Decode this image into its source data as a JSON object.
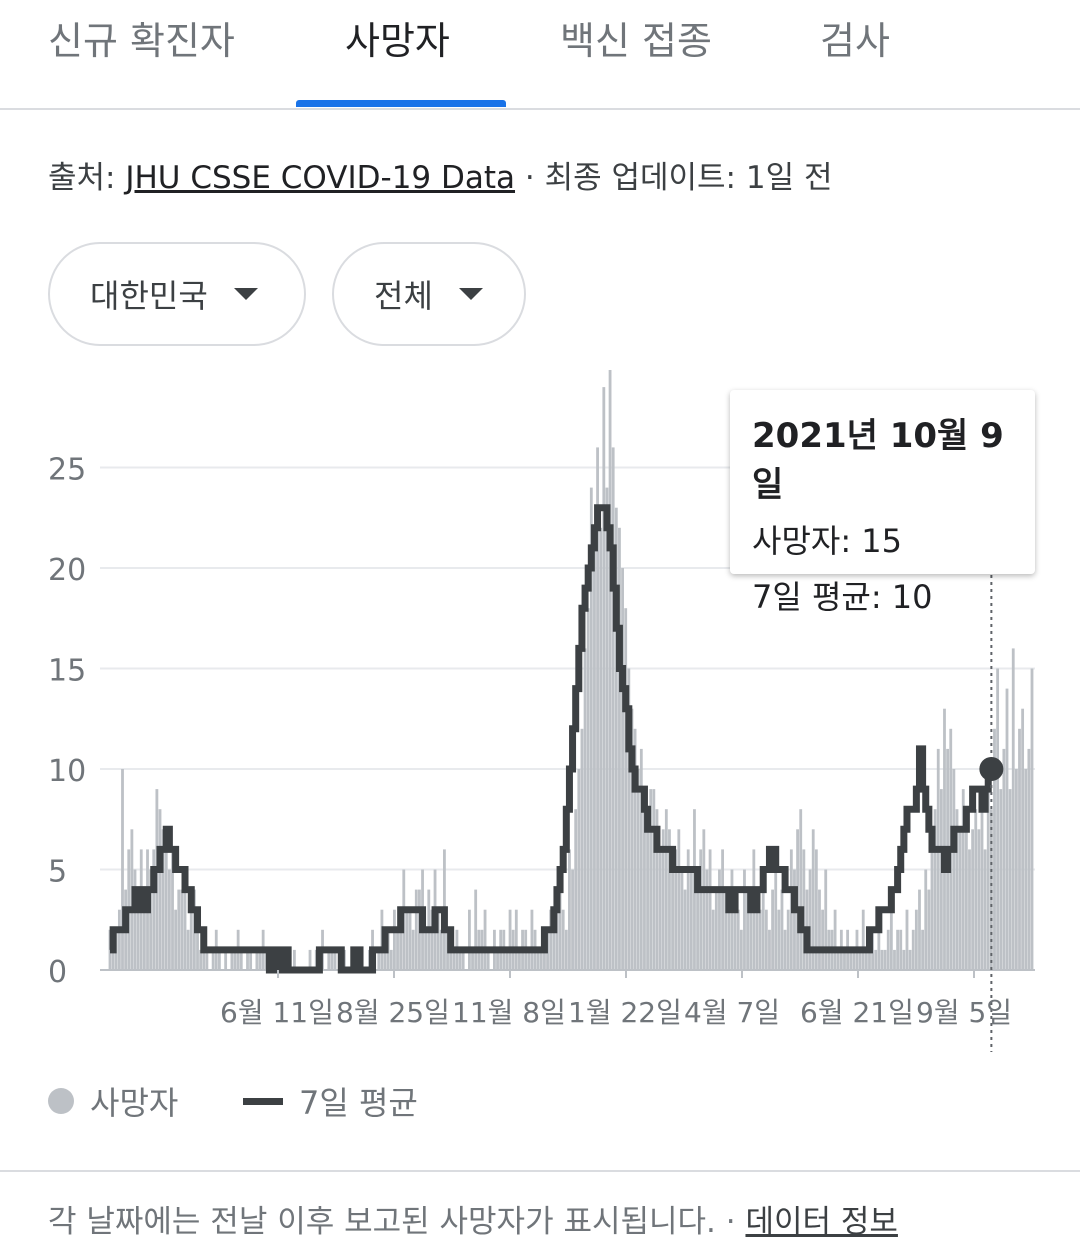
{
  "tabs": [
    {
      "label": "신규 확진자",
      "active": false
    },
    {
      "label": "사망자",
      "active": true
    },
    {
      "label": "백신 접종",
      "active": false
    },
    {
      "label": "검사",
      "active": false
    }
  ],
  "source": {
    "prefix": "출처: ",
    "link": "JHU CSSE COVID-19 Data",
    "suffix": " · 최종 업데이트: 1일 전"
  },
  "filters": {
    "region": "대한민국",
    "scope": "전체"
  },
  "tooltip": {
    "date": "2021년 10월 9일",
    "deaths": "사망자: 15",
    "avg": "7일 평균: 10"
  },
  "legend": {
    "series1": "사망자",
    "series2": "7일 평균"
  },
  "footer": {
    "note": "각 날짜에는 전날 이후 보고된 사망자가 표시됩니다.",
    "sep": " · ",
    "link": "데이터 정보"
  },
  "colors": {
    "accent": "#1a73e8",
    "bar": "#bdc1c6",
    "line": "#3c4043"
  },
  "chart_data": {
    "type": "bar",
    "y_ticks": [
      "0",
      "5",
      "10",
      "15",
      "20",
      "25"
    ],
    "x_ticks": [
      "6월 11일",
      "8월 25일",
      "11월 8일",
      "1월 22일",
      "4월 7일",
      "6월 21일",
      "9월 5일"
    ],
    "ylim": [
      0,
      28
    ],
    "series": [
      {
        "name": "사망자",
        "kind": "bar",
        "values": [
          2,
          1,
          2,
          3,
          10,
          4,
          6,
          7,
          5,
          3,
          6,
          4,
          6,
          5,
          6,
          9,
          8,
          7,
          7,
          5,
          6,
          3,
          4,
          4,
          5,
          2,
          3,
          4,
          2,
          1,
          1,
          1,
          0,
          1,
          2,
          1,
          0,
          1,
          0,
          1,
          1,
          2,
          1,
          0,
          1,
          1,
          0,
          1,
          1,
          2,
          1,
          0,
          0,
          0,
          0,
          0,
          1,
          0,
          0,
          1,
          0,
          0,
          0,
          0,
          1,
          0,
          1,
          1,
          2,
          0,
          1,
          1,
          1,
          0,
          0,
          1,
          0,
          0,
          1,
          0,
          0,
          0,
          0,
          1,
          2,
          0,
          1,
          3,
          1,
          2,
          1,
          3,
          2,
          2,
          5,
          3,
          3,
          2,
          4,
          4,
          5,
          2,
          4,
          3,
          5,
          3,
          2,
          6,
          2,
          1,
          1,
          2,
          1,
          1,
          0,
          3,
          1,
          4,
          2,
          2,
          3,
          1,
          0,
          2,
          1,
          2,
          2,
          1,
          3,
          2,
          3,
          1,
          2,
          2,
          1,
          3,
          2,
          1,
          1,
          2,
          2,
          3,
          2,
          3,
          4,
          3,
          2,
          6,
          5,
          8,
          10,
          12,
          16,
          18,
          24,
          22,
          26,
          22,
          29,
          24,
          30,
          26,
          23,
          22,
          20,
          18,
          15,
          13,
          12,
          10,
          11,
          9,
          8,
          9,
          9,
          8,
          6,
          7,
          8,
          7,
          5,
          6,
          7,
          5,
          4,
          6,
          5,
          8,
          4,
          6,
          7,
          5,
          6,
          3,
          4,
          5,
          6,
          4,
          3,
          5,
          4,
          3,
          2,
          5,
          4,
          3,
          6,
          4,
          3,
          5,
          3,
          2,
          4,
          5,
          3,
          4,
          2,
          3,
          6,
          5,
          7,
          8,
          6,
          4,
          5,
          7,
          6,
          4,
          3,
          5,
          2,
          2,
          3,
          1,
          2,
          1,
          2,
          1,
          1,
          2,
          1,
          3,
          1,
          2,
          2,
          1,
          2,
          1,
          1,
          2,
          3,
          1,
          2,
          2,
          1,
          3,
          1,
          2,
          3,
          4,
          2,
          5,
          4,
          6,
          8,
          11,
          9,
          13,
          11,
          12,
          10,
          8,
          7,
          9,
          8,
          6,
          7,
          8,
          7,
          9,
          6,
          10,
          8,
          12,
          15,
          9,
          11,
          14,
          9,
          16,
          10,
          12,
          13,
          10,
          11,
          15
        ]
      },
      {
        "name": "7일 평균",
        "kind": "line",
        "values": [
          1,
          2,
          2,
          2,
          2,
          3,
          3,
          3,
          4,
          4,
          3,
          3,
          4,
          4,
          5,
          5,
          6,
          6,
          7,
          6,
          6,
          5,
          5,
          5,
          4,
          4,
          3,
          3,
          2,
          2,
          1,
          1,
          1,
          1,
          1,
          1,
          1,
          1,
          1,
          1,
          1,
          1,
          1,
          1,
          1,
          1,
          1,
          1,
          1,
          1,
          1,
          0,
          0,
          1,
          0,
          0,
          1,
          0,
          0,
          0,
          0,
          0,
          0,
          0,
          0,
          0,
          0,
          1,
          1,
          1,
          1,
          1,
          1,
          1,
          0,
          0,
          0,
          0,
          1,
          1,
          0,
          0,
          0,
          0,
          1,
          1,
          1,
          1,
          2,
          2,
          2,
          2,
          2,
          3,
          3,
          3,
          3,
          3,
          3,
          3,
          2,
          2,
          2,
          2,
          3,
          3,
          3,
          2,
          2,
          1,
          1,
          1,
          1,
          1,
          1,
          1,
          1,
          1,
          1,
          1,
          1,
          1,
          1,
          1,
          1,
          1,
          1,
          1,
          1,
          1,
          1,
          1,
          1,
          1,
          1,
          1,
          1,
          1,
          1,
          2,
          2,
          2,
          3,
          4,
          5,
          6,
          8,
          10,
          12,
          14,
          16,
          18,
          19,
          20,
          21,
          22,
          23,
          23,
          23,
          22,
          21,
          19,
          17,
          15,
          14,
          13,
          11,
          10,
          9,
          9,
          9,
          8,
          7,
          7,
          7,
          6,
          6,
          6,
          6,
          6,
          5,
          5,
          5,
          5,
          5,
          5,
          5,
          5,
          4,
          4,
          4,
          4,
          4,
          4,
          4,
          4,
          4,
          4,
          3,
          3,
          4,
          4,
          4,
          4,
          4,
          3,
          3,
          4,
          4,
          5,
          5,
          6,
          6,
          5,
          5,
          5,
          4,
          4,
          4,
          3,
          3,
          2,
          2,
          1,
          1,
          1,
          1,
          1,
          1,
          1,
          1,
          1,
          1,
          1,
          1,
          1,
          1,
          1,
          1,
          1,
          1,
          1,
          1,
          2,
          2,
          2,
          3,
          3,
          3,
          3,
          4,
          4,
          5,
          6,
          7,
          8,
          8,
          8,
          9,
          11,
          9,
          8,
          7,
          6,
          6,
          6,
          6,
          5,
          6,
          6,
          7,
          7,
          7,
          7,
          8,
          8,
          9,
          9,
          9,
          8,
          9,
          10,
          10
        ]
      }
    ],
    "tooltip_point": {
      "date": "2021년 10월 9일",
      "deaths": 15,
      "avg": 10
    },
    "legend": "bottom-left"
  }
}
